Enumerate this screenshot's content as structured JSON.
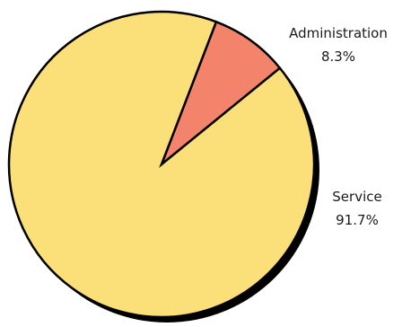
{
  "chart_data": {
    "type": "pie",
    "slices": [
      {
        "label": "Administration",
        "value": 8.3,
        "value_label": "8.3%",
        "color": "#f4836b"
      },
      {
        "label": "Service",
        "value": 91.7,
        "value_label": "91.7%",
        "color": "#fbe07a"
      }
    ],
    "title": "",
    "legend": "none",
    "outline_color": "#000000",
    "shadow": true
  }
}
